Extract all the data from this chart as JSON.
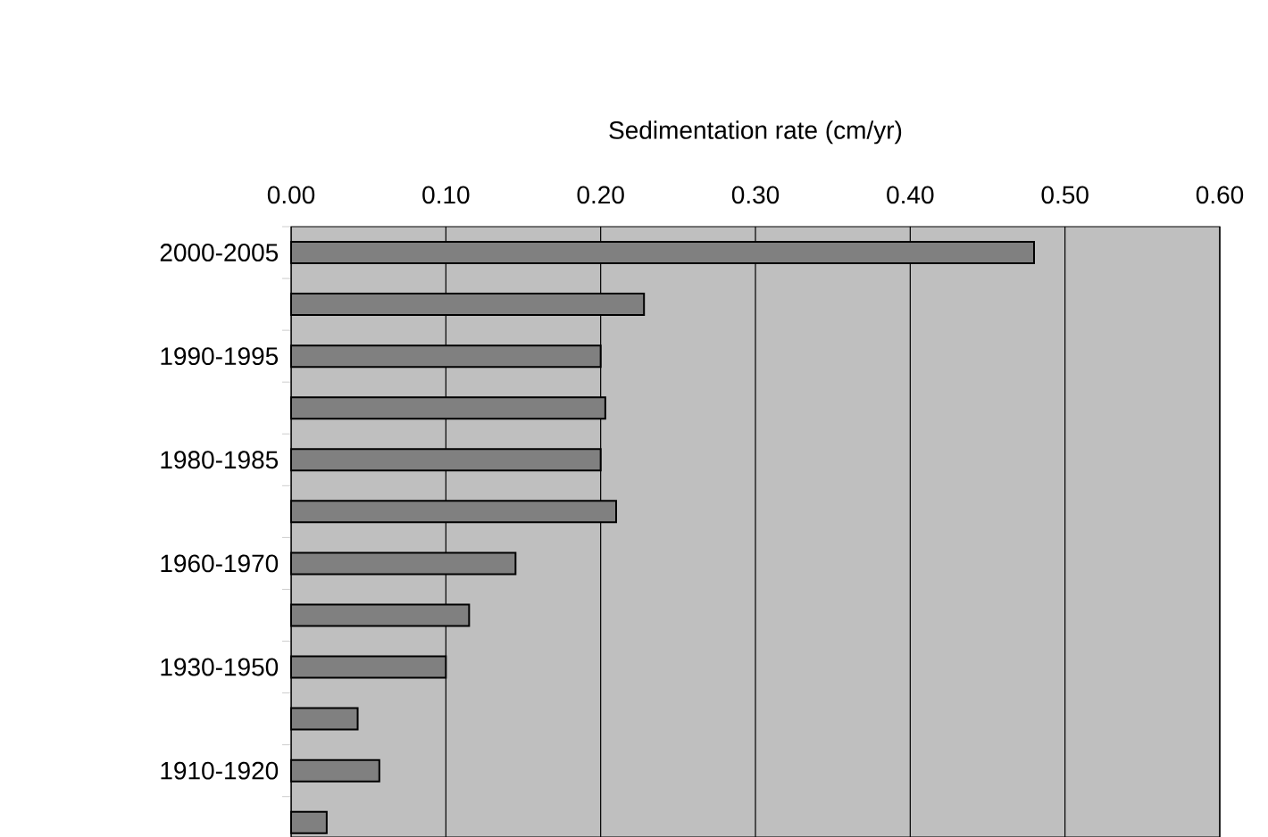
{
  "chart_data": {
    "type": "bar",
    "orientation": "horizontal",
    "xlabel": "Sedimentation rate (cm/yr)",
    "categories": [
      "2000-2005",
      null,
      "1990-1995",
      null,
      "1980-1985",
      null,
      "1960-1970",
      null,
      "1930-1950",
      null,
      "1910-1920",
      null
    ],
    "series": [
      {
        "color": "#808080",
        "values": [
          0.48,
          0.228,
          0.2,
          0.203,
          0.2,
          0.21,
          0.145,
          0.115,
          0.1,
          0.043,
          0.057,
          0.023
        ]
      }
    ],
    "xlim": [
      0,
      0.6
    ],
    "xticks": [
      {
        "value": 0,
        "label": "0.00"
      },
      {
        "value": 0.1,
        "label": "0.10"
      },
      {
        "value": 0.2,
        "label": "0.20"
      },
      {
        "value": 0.3,
        "label": "0.30"
      },
      {
        "value": 0.4,
        "label": "0.40"
      },
      {
        "value": 0.5,
        "label": "0.50"
      },
      {
        "value": 0.6,
        "label": "0.60"
      }
    ],
    "grid": "x"
  }
}
